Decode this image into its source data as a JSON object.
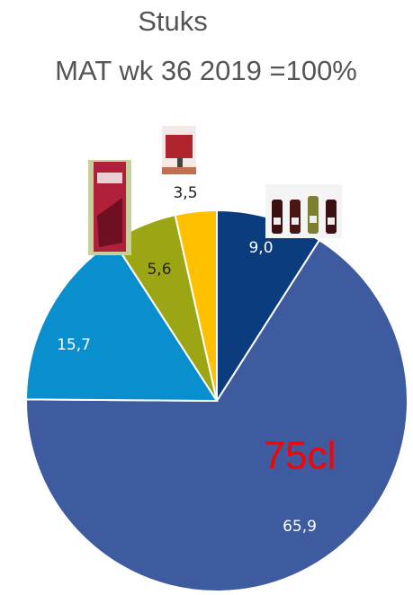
{
  "chart_data": {
    "type": "pie",
    "title": "Stuks",
    "subtitle": "MAT wk 36 2019 =100%",
    "annotation": "75cl",
    "values": [
      9.0,
      65.9,
      15.7,
      5.6,
      3.5
    ],
    "value_labels": [
      "9,0",
      "65,9",
      "15,7",
      "5,6",
      "3,5"
    ],
    "colors": [
      "#0b3c7d",
      "#3f5b9f",
      "#0a8fce",
      "#9ca614",
      "#ffc000"
    ]
  }
}
